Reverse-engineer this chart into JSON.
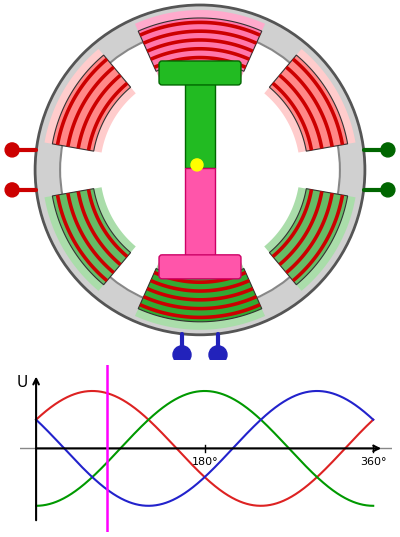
{
  "bg_color": "#ffffff",
  "wave_red": "#dd2222",
  "wave_green": "#009900",
  "wave_blue": "#2222cc",
  "wave_magenta": "#ff00ff",
  "fig_width": 4.0,
  "fig_height": 5.37
}
